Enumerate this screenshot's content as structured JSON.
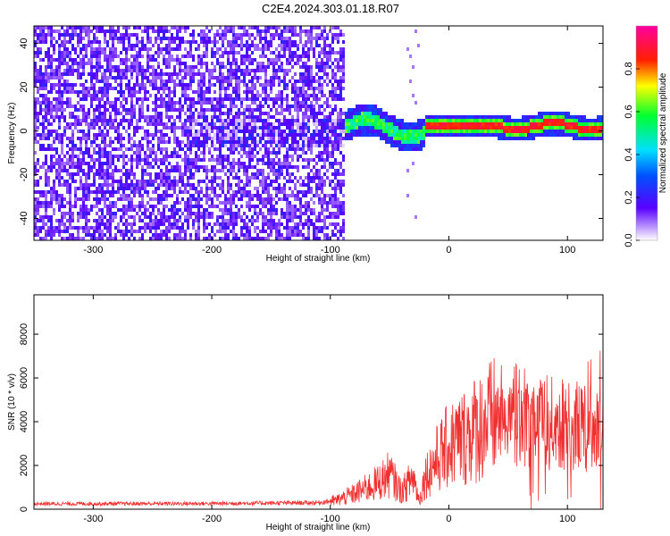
{
  "title": "C2E4.2024.303.01.18.R07",
  "colors": {
    "snr_line": "#f03030",
    "spectrogram_low": "#7a2cf0",
    "spectrogram_high": "#ff0000"
  },
  "chart_data": [
    {
      "type": "heatmap",
      "title": "C2E4.2024.303.01.18.R07",
      "xlabel": "Height of straight line (km)",
      "ylabel": "Frequency (Hz)",
      "xlim": [
        -350,
        130
      ],
      "ylim": [
        -50,
        48
      ],
      "xticks": [
        -300,
        -200,
        -100,
        0,
        100
      ],
      "yticks": [
        -40,
        -20,
        0,
        20,
        40
      ],
      "colorbar": {
        "label": "Normalized spectral amplitude",
        "range": [
          0,
          1
        ],
        "ticks": [
          0.0,
          0.2,
          0.4,
          0.6,
          0.8
        ],
        "colormap": "rainbow (violet to red)"
      },
      "features": [
        {
          "x_range": [
            -350,
            -88
          ],
          "frequency_range": [
            -50,
            48
          ],
          "amplitude": 0.15,
          "description": "broadband noise"
        },
        {
          "x_range": [
            -88,
            -22
          ],
          "frequency_center": [
            0,
            4
          ],
          "amplitude": 0.5
        },
        {
          "x_range": [
            -22,
            130
          ],
          "frequency_center": [
            2,
            3
          ],
          "amplitude": 0.9
        }
      ]
    },
    {
      "type": "line",
      "xlabel": "Height of straight line (km)",
      "ylabel": "SNR (10 * v/v)",
      "xlim": [
        -350,
        130
      ],
      "ylim": [
        0,
        9800
      ],
      "xticks": [
        -300,
        -200,
        -100,
        0,
        100
      ],
      "yticks": [
        0,
        2000,
        4000,
        6000,
        8000
      ],
      "envelope_x": [
        -350,
        -300,
        -200,
        -150,
        -110,
        -95,
        -80,
        -60,
        -50,
        -40,
        -30,
        -25,
        -20,
        -10,
        0,
        10,
        20,
        30,
        40,
        50,
        60,
        70,
        80,
        90,
        100,
        110,
        120,
        130
      ],
      "envelope_y": [
        250,
        250,
        260,
        280,
        300,
        400,
        700,
        1200,
        1600,
        800,
        1500,
        400,
        1500,
        2300,
        2900,
        3200,
        3600,
        3900,
        4200,
        4300,
        4300,
        4200,
        4000,
        3900,
        3800,
        3800,
        3700,
        3800
      ]
    }
  ]
}
